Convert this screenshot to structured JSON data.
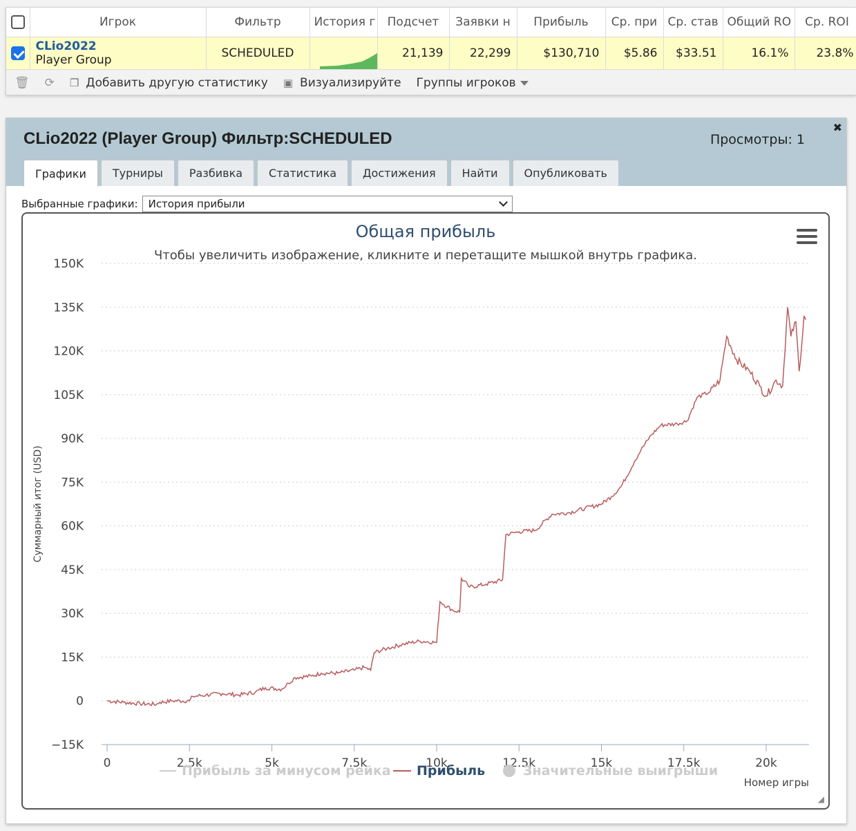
{
  "table": {
    "headers": [
      "Игрок",
      "Фильтр",
      "История г",
      "Подсчет",
      "Заявки н",
      "Прибыль",
      "Ср. при",
      "Ср. став",
      "Общий RO",
      "Ср. ROI"
    ],
    "row": {
      "player_name": "CLio2022",
      "player_group": "Player Group",
      "filter": "SCHEDULED",
      "count": "21,139",
      "entries": "22,299",
      "profit": "$130,710",
      "avg_profit": "$5.86",
      "avg_stake": "$33.51",
      "total_roi": "16.1%",
      "avg_roi": "23.8%"
    }
  },
  "toolbar": {
    "add_stat": "Добавить другую статистику",
    "visualize": "Визуализируйте",
    "player_groups": "Группы игроков"
  },
  "panel": {
    "title": "CLio2022 (Player Group) Фильтр:SCHEDULED",
    "views": "Просмотры: 1",
    "close": "✖",
    "tabs": [
      "Графики",
      "Турниры",
      "Разбивка",
      "Статистика",
      "Достижения",
      "Найти",
      "Опубликовать"
    ],
    "select_label": "Выбранные графики:",
    "select_value": "История прибыли"
  },
  "chart_data": {
    "type": "line",
    "title": "Общая прибыль",
    "subtitle": "Чтобы увеличить изображение, кликните и перетащите мышкой внутрь графика.",
    "xlabel": "Номер игры",
    "ylabel": "Суммарный итог (USD)",
    "xlim": [
      0,
      21300
    ],
    "ylim": [
      -15000,
      150000
    ],
    "x_ticks": [
      0,
      2500,
      5000,
      7500,
      10000,
      12500,
      15000,
      17500,
      20000
    ],
    "x_tick_labels": [
      "0",
      "2.5k",
      "5k",
      "7.5k",
      "10k",
      "12.5k",
      "15k",
      "17.5k",
      "20k"
    ],
    "y_ticks": [
      -15000,
      0,
      15000,
      30000,
      45000,
      60000,
      75000,
      90000,
      105000,
      120000,
      135000,
      150000
    ],
    "y_tick_labels": [
      "−15K",
      "0",
      "15K",
      "30K",
      "45K",
      "60K",
      "75K",
      "90K",
      "105K",
      "120K",
      "135K",
      "150K"
    ],
    "grid": true,
    "legend_position": "bottom",
    "colors": {
      "profit": "#b85c5c",
      "disabled": "#cccccc",
      "grid": "#cccccc"
    },
    "series": [
      {
        "name": "Прибыль за минусом рейка",
        "visible": false,
        "values": []
      },
      {
        "name": "Прибыль",
        "visible": true,
        "points": [
          [
            0,
            0
          ],
          [
            500,
            -500
          ],
          [
            1000,
            -1000
          ],
          [
            1500,
            -1200
          ],
          [
            1600,
            -500
          ],
          [
            2000,
            0
          ],
          [
            2500,
            0
          ],
          [
            2600,
            1500
          ],
          [
            3000,
            2000
          ],
          [
            3500,
            2500
          ],
          [
            4000,
            2000
          ],
          [
            4500,
            3000
          ],
          [
            4800,
            4500
          ],
          [
            5300,
            4000
          ],
          [
            5500,
            6000
          ],
          [
            5700,
            8000
          ],
          [
            6200,
            8500
          ],
          [
            6500,
            9500
          ],
          [
            7000,
            9500
          ],
          [
            7500,
            10500
          ],
          [
            7800,
            11500
          ],
          [
            8000,
            10500
          ],
          [
            8100,
            16500
          ],
          [
            8500,
            18000
          ],
          [
            9000,
            19500
          ],
          [
            9500,
            20500
          ],
          [
            10000,
            20000
          ],
          [
            10100,
            34000
          ],
          [
            10500,
            31000
          ],
          [
            10700,
            30500
          ],
          [
            10750,
            42000
          ],
          [
            11000,
            39000
          ],
          [
            11500,
            40000
          ],
          [
            12000,
            41500
          ],
          [
            12100,
            57000
          ],
          [
            12500,
            58000
          ],
          [
            13000,
            58500
          ],
          [
            13500,
            64000
          ],
          [
            14000,
            64500
          ],
          [
            14500,
            66000
          ],
          [
            15000,
            67500
          ],
          [
            15300,
            70000
          ],
          [
            15600,
            73500
          ],
          [
            16000,
            82000
          ],
          [
            16200,
            86000
          ],
          [
            16500,
            91000
          ],
          [
            16800,
            94500
          ],
          [
            17300,
            95000
          ],
          [
            17600,
            96000
          ],
          [
            17900,
            104000
          ],
          [
            18300,
            106000
          ],
          [
            18600,
            110000
          ],
          [
            18800,
            125000
          ],
          [
            19100,
            117000
          ],
          [
            19500,
            113000
          ],
          [
            19800,
            108000
          ],
          [
            20000,
            104500
          ],
          [
            20300,
            110000
          ],
          [
            20500,
            108000
          ],
          [
            20650,
            135000
          ],
          [
            20750,
            125000
          ],
          [
            20900,
            130000
          ],
          [
            21000,
            113000
          ],
          [
            21150,
            132000
          ],
          [
            21200,
            130710
          ]
        ]
      },
      {
        "name": "Значительные выигрыши",
        "visible": false,
        "values": []
      }
    ]
  }
}
